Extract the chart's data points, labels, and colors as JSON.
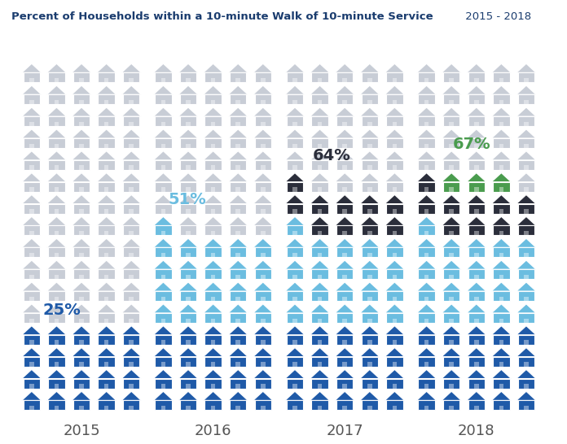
{
  "title_bold": "Percent of Households within a 10-minute Walk of 10-minute Service",
  "title_normal": " 2015 - 2018",
  "years": [
    "2015",
    "2016",
    "2017",
    "2018"
  ],
  "pct_labels": [
    "25%",
    "51%",
    "64%",
    "67%"
  ],
  "pct_colors": [
    "#1f5aa8",
    "#6bbde0",
    "#2b2e3b",
    "#4a9c4e"
  ],
  "total_icons": 80,
  "cols": 5,
  "rows": 16,
  "colors": {
    "dark_blue": "#1f5aa8",
    "light_blue": "#6bbde0",
    "dark_charcoal": "#2b2e3b",
    "green": "#4a9c4e",
    "gray": "#c8cdd6",
    "background": "#ffffff"
  },
  "title_color": "#1a3c6e",
  "year_label_color": "#555555",
  "dark_blue_rows": 5,
  "light_blue_rows": 6,
  "dark_charcoal_rows": 2,
  "green_extra": 2
}
